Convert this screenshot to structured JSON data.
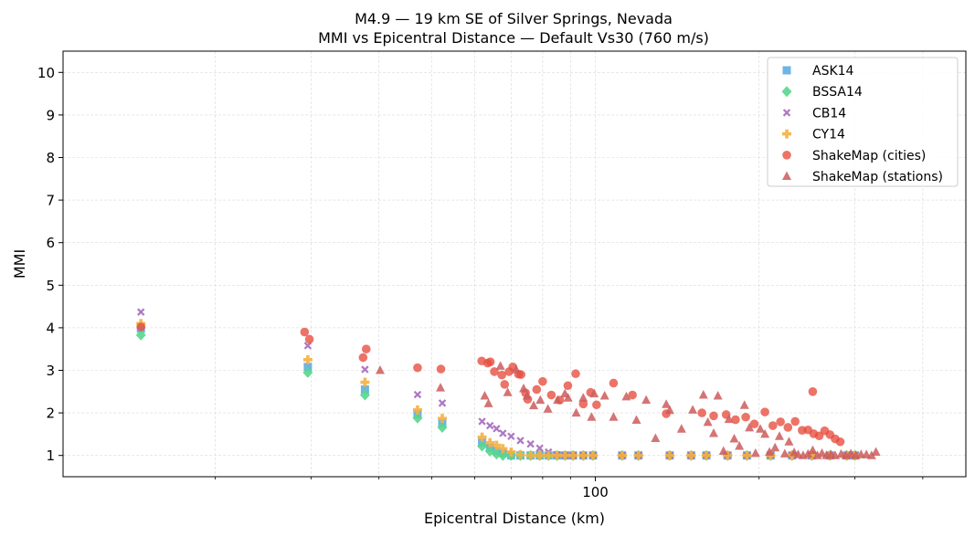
{
  "chart_data": {
    "type": "scatter",
    "title": "M4.9 — 19 km SE of Silver Springs, Nevada",
    "subtitle": "MMI vs Epicentral Distance — Default Vs30 (760 m/s)",
    "xlabel": "Epicentral Distance (km)",
    "ylabel": "MMI",
    "xscale": "log",
    "xlim": [
      10.5,
      480
    ],
    "ylim": [
      0.5,
      10.5
    ],
    "xticks_major": [
      100
    ],
    "xticks_major_labels": [
      "100"
    ],
    "xticks_minor": [
      20,
      30,
      40,
      50,
      60,
      70,
      80,
      90,
      200,
      300,
      400
    ],
    "yticks": [
      1,
      2,
      3,
      4,
      5,
      6,
      7,
      8,
      9,
      10
    ],
    "ytick_labels": [
      "1",
      "2",
      "3",
      "4",
      "5",
      "6",
      "7",
      "8",
      "9",
      "10"
    ],
    "grid": true,
    "legend_position": "top-right",
    "series": [
      {
        "name": "ASK14",
        "marker": "square",
        "color": "#5DADE2",
        "x": [
          14.6,
          29.6,
          37.7,
          47.1,
          52.3,
          61.9,
          64.0,
          65.8,
          67.6,
          70.0,
          72.8,
          76.0,
          79.0,
          82.0,
          85.0,
          88.0,
          91.0,
          95.0,
          99.0,
          112,
          120,
          137,
          150,
          160,
          175,
          190,
          210,
          230,
          250,
          270,
          290,
          300
        ],
        "y": [
          3.98,
          3.08,
          2.55,
          1.97,
          1.76,
          1.3,
          1.18,
          1.1,
          1.06,
          1.0,
          1.0,
          1.0,
          1.0,
          1.0,
          1.0,
          1.0,
          1.0,
          1.0,
          1.0,
          1.0,
          1.0,
          1.0,
          1.0,
          1.0,
          1.0,
          1.0,
          1.0,
          1.0,
          1.0,
          1.0,
          1.0,
          1.0
        ]
      },
      {
        "name": "BSSA14",
        "marker": "diamond",
        "color": "#58D68D",
        "x": [
          14.6,
          29.6,
          37.7,
          47.1,
          52.3,
          61.9,
          64.0,
          65.8,
          67.6,
          70.0,
          72.8,
          76.0,
          79.0,
          82.0,
          85.0,
          88.0,
          91.0,
          95.0,
          99.0,
          112,
          120,
          137,
          150,
          160,
          175,
          190,
          210,
          230,
          250,
          270,
          290,
          300
        ],
        "y": [
          3.83,
          2.95,
          2.42,
          1.88,
          1.66,
          1.22,
          1.1,
          1.03,
          1.0,
          1.0,
          1.0,
          1.0,
          1.0,
          1.0,
          1.0,
          1.0,
          1.0,
          1.0,
          1.0,
          1.0,
          1.0,
          1.0,
          1.0,
          1.0,
          1.0,
          1.0,
          1.0,
          1.0,
          1.0,
          1.0,
          1.0,
          1.0
        ]
      },
      {
        "name": "CB14",
        "marker": "x",
        "color": "#A569BD",
        "x": [
          14.6,
          29.6,
          37.7,
          47.1,
          52.3,
          61.9,
          64.0,
          65.8,
          67.6,
          70.0,
          72.8,
          76.0,
          79.0,
          82.0,
          85.0,
          88.0,
          91.0,
          95.0,
          99.0,
          112,
          120,
          137,
          150,
          160,
          175,
          190,
          210,
          230,
          250,
          270,
          290,
          300
        ],
        "y": [
          4.37,
          3.58,
          3.02,
          2.43,
          2.23,
          1.8,
          1.7,
          1.63,
          1.52,
          1.45,
          1.35,
          1.27,
          1.17,
          1.08,
          1.02,
          1.0,
          1.0,
          1.0,
          1.0,
          1.0,
          1.0,
          1.0,
          1.0,
          1.0,
          1.0,
          1.0,
          1.0,
          1.0,
          1.0,
          1.0,
          1.0,
          1.0
        ]
      },
      {
        "name": "CY14",
        "marker": "plus",
        "color": "#F5B041",
        "x": [
          14.6,
          29.6,
          37.7,
          47.1,
          52.3,
          61.9,
          64.0,
          65.8,
          67.6,
          70.0,
          72.8,
          76.0,
          79.0,
          82.0,
          85.0,
          88.0,
          91.0,
          95.0,
          99.0,
          112,
          120,
          137,
          150,
          160,
          175,
          190,
          210,
          230,
          250,
          270,
          290,
          300
        ],
        "y": [
          4.1,
          3.25,
          2.72,
          2.07,
          1.87,
          1.43,
          1.3,
          1.24,
          1.16,
          1.08,
          1.02,
          1.0,
          1.0,
          1.0,
          1.0,
          1.0,
          1.0,
          1.0,
          1.0,
          1.0,
          1.0,
          1.0,
          1.0,
          1.0,
          1.0,
          1.0,
          1.0,
          1.0,
          1.0,
          1.0,
          1.0,
          1.0
        ]
      },
      {
        "name": "ShakeMap (cities)",
        "marker": "circle",
        "color": "#E74C3C",
        "x": [
          14.6,
          29.2,
          29.8,
          37.4,
          37.9,
          47.1,
          52.0,
          61.8,
          63.4,
          64.1,
          65.2,
          67.3,
          68.1,
          69.4,
          70.5,
          72.2,
          73.0,
          74.4,
          75.1,
          78.0,
          80.0,
          83.0,
          86.0,
          89.0,
          92.0,
          95.0,
          98.0,
          100.5,
          108,
          117,
          135,
          157,
          165,
          174,
          181,
          189,
          196,
          205,
          212,
          219,
          226,
          233,
          240,
          246,
          252,
          258,
          264,
          270,
          276,
          282,
          251
        ],
        "y": [
          4.02,
          3.9,
          3.73,
          3.3,
          3.5,
          3.06,
          3.03,
          3.22,
          3.17,
          3.2,
          2.97,
          2.89,
          2.67,
          2.97,
          3.08,
          2.91,
          2.9,
          2.47,
          2.32,
          2.55,
          2.74,
          2.42,
          2.3,
          2.64,
          2.92,
          2.21,
          2.48,
          2.19,
          2.7,
          2.42,
          1.98,
          2.0,
          1.93,
          1.96,
          1.84,
          1.9,
          1.74,
          2.02,
          1.7,
          1.79,
          1.66,
          1.8,
          1.59,
          1.6,
          1.51,
          1.46,
          1.58,
          1.49,
          1.39,
          1.32,
          2.5
        ]
      },
      {
        "name": "ShakeMap (stations)",
        "marker": "triangle",
        "color": "#CD5C5C",
        "x": [
          40.2,
          51.9,
          62.6,
          63.6,
          66.9,
          69.0,
          71.5,
          73.8,
          74.9,
          77.0,
          79.2,
          81.8,
          85.2,
          87.9,
          89.1,
          92.2,
          95.0,
          98.4,
          99.5,
          104,
          108,
          114,
          119,
          124,
          129,
          135,
          137,
          144,
          151,
          158,
          161,
          165,
          168,
          172,
          176,
          180,
          184,
          188,
          192,
          197,
          201,
          205,
          209,
          214,
          218,
          223,
          227,
          232,
          236,
          241,
          246,
          251,
          256,
          261,
          266,
          271,
          276,
          283,
          289,
          295,
          301,
          308,
          315,
          322,
          328
        ],
        "y": [
          3.0,
          2.59,
          2.4,
          2.22,
          3.1,
          2.48,
          3.02,
          2.57,
          2.4,
          2.17,
          2.3,
          2.09,
          2.3,
          2.45,
          2.35,
          2.0,
          2.35,
          1.9,
          2.45,
          2.4,
          1.9,
          2.38,
          1.83,
          2.3,
          1.4,
          2.2,
          2.06,
          1.62,
          2.07,
          2.42,
          1.78,
          1.52,
          2.4,
          1.1,
          1.85,
          1.39,
          1.22,
          2.18,
          1.65,
          1.05,
          1.62,
          1.5,
          1.08,
          1.18,
          1.45,
          1.04,
          1.32,
          1.07,
          1.02,
          1.0,
          1.03,
          1.12,
          1.0,
          1.05,
          1.0,
          1.02,
          1.0,
          1.03,
          1.0,
          1.04,
          1.0,
          1.02,
          1.02,
          1.0,
          1.08
        ]
      }
    ]
  }
}
